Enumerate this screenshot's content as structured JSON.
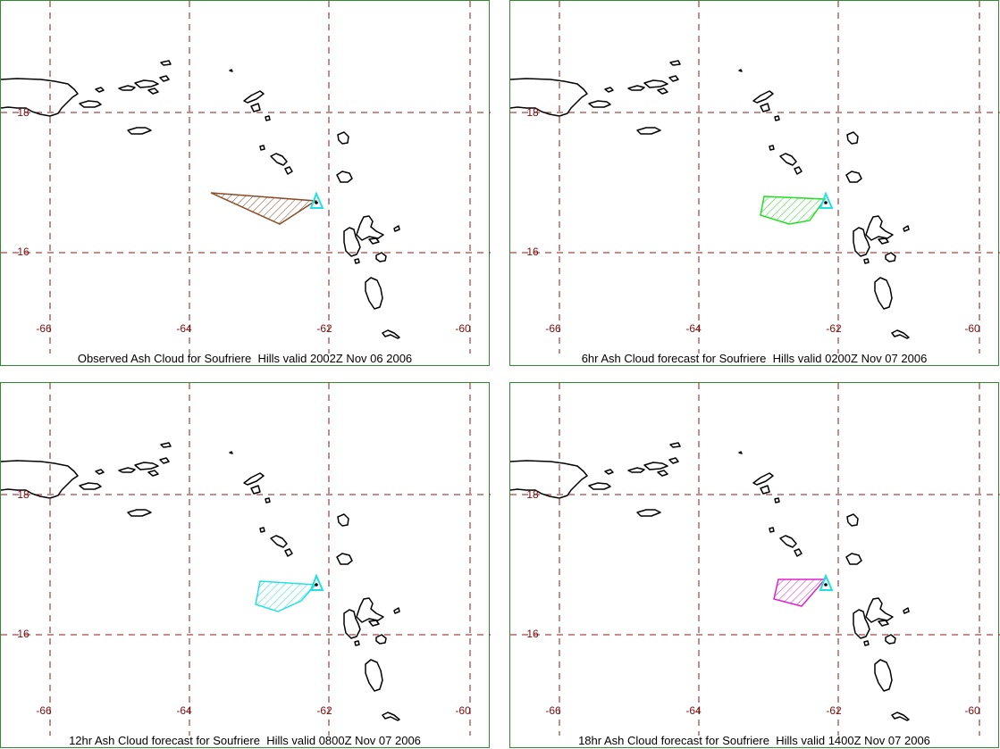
{
  "panels": [
    {
      "caption": "Observed Ash Cloud for Soufriere  Hills valid 2002Z Nov 06 2006",
      "cloud_color": "#8b4a26"
    },
    {
      "caption": "6hr Ash Cloud forecast for Soufriere  Hills valid 0200Z Nov 07 2006",
      "cloud_color": "#22dd22"
    },
    {
      "caption": "12hr Ash Cloud forecast for Soufriere  Hills valid 0800Z Nov 07 2006",
      "cloud_color": "#22e0e0"
    },
    {
      "caption": "18hr Ash Cloud forecast for Soufriere  Hills valid 1400Z Nov 07 2006",
      "cloud_color": "#dd22cc"
    }
  ],
  "lon_labels": [
    "-66",
    "-64",
    "-62",
    "-60"
  ],
  "lat_labels": [
    "18",
    "16"
  ],
  "colors": {
    "frame": "#2e8b2e",
    "grid": "#8b1a1a",
    "land": "#000000",
    "volcano": "#22e0e0"
  }
}
